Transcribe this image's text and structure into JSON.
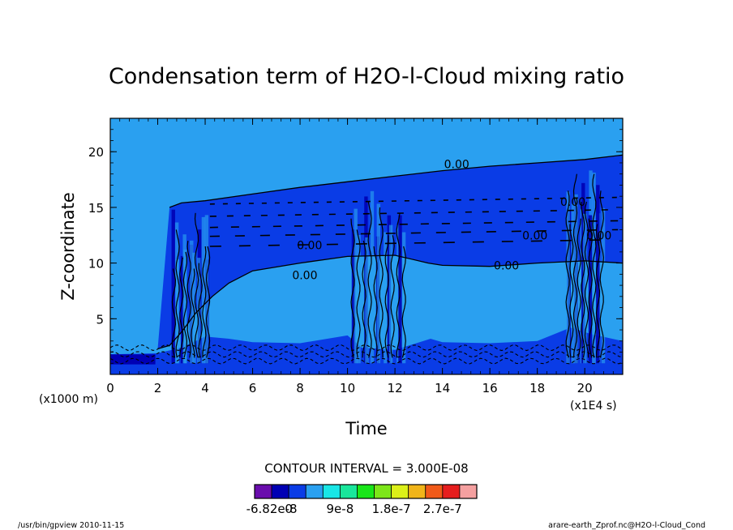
{
  "chart_data": {
    "type": "heatmap",
    "title": "Condensation term of H2O-l-Cloud mixing ratio",
    "xlabel": "Time",
    "ylabel": "Z-coordinate",
    "x_unit": "(x1E4 s)",
    "y_unit": "(x1000 m)",
    "xlim": [
      0,
      21.6
    ],
    "ylim": [
      0,
      23
    ],
    "x_ticks": [
      "0",
      "2",
      "4",
      "6",
      "8",
      "10",
      "12",
      "14",
      "16",
      "18",
      "20"
    ],
    "y_ticks": [
      "5",
      "10",
      "15",
      "20"
    ],
    "contour_labels": [
      {
        "text": "0.00",
        "x": 14.6,
        "y": 18.9
      },
      {
        "text": "0.00",
        "x": 19.5,
        "y": 15.5
      },
      {
        "text": "0.00",
        "x": 17.9,
        "y": 12.5
      },
      {
        "text": "0.00",
        "x": 20.6,
        "y": 12.5
      },
      {
        "text": "0.00",
        "x": 8.4,
        "y": 11.6
      },
      {
        "text": "0.00",
        "x": 16.7,
        "y": 9.8
      },
      {
        "text": "0.00",
        "x": 8.2,
        "y": 8.9
      }
    ],
    "contour_interval_text": "CONTOUR INTERVAL = 3.000E-08",
    "colorbar": {
      "colors": [
        "#6a0dad",
        "#0000b4",
        "#0a3ce6",
        "#2aa0f0",
        "#19e6e6",
        "#19e69b",
        "#19e619",
        "#7de619",
        "#dcf019",
        "#f0b419",
        "#f05a19",
        "#e61e1e",
        "#f5a0a0"
      ],
      "labels": [
        "-6.82e-8",
        "0",
        "9e-8",
        "1.8e-7",
        "2.7e-7"
      ]
    },
    "fill_colors": {
      "background": "#2aa0f0",
      "negative": "#0a3ce6",
      "strong_negative": "#0000b4"
    }
  },
  "footer": {
    "left": "/usr/bin/gpview  2010-11-15",
    "right": "arare-earth_Zprof.nc@H2O-l-Cloud_Cond"
  }
}
